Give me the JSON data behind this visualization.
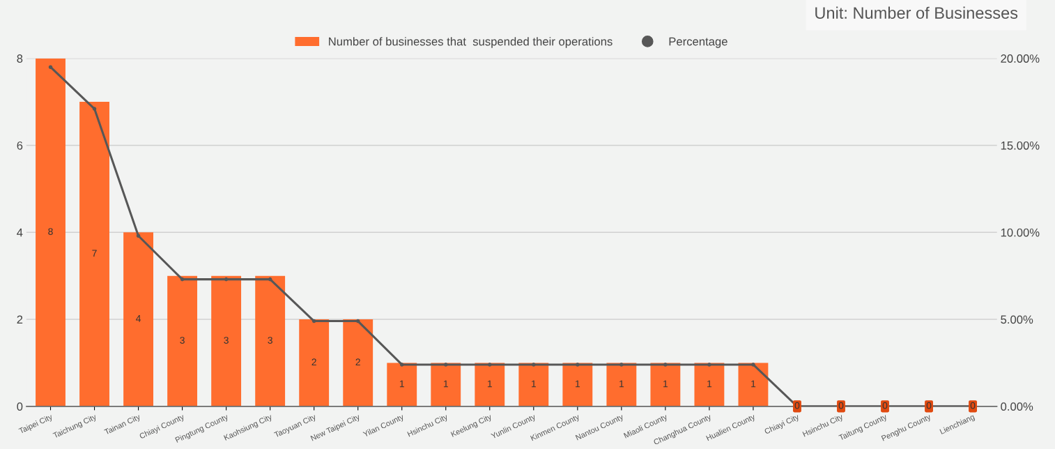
{
  "chart_data": {
    "type": "bar",
    "annotations": [
      "Unit: Number of Businesses"
    ],
    "categories": [
      "Taipei City",
      "Taichung City",
      "Tainan City",
      "Chiayi County",
      "Pingtung County",
      "Kaohsiung City",
      "Taoyuan City",
      "New Taipei City",
      "Yilan County",
      "Hsinchu City",
      "Keelung City",
      "Yunlin County",
      "Kinmen County",
      "Nantou County",
      "Miaoli County",
      "Changhua County",
      "Hualien County",
      "Chiayi City",
      "Hsinchu City",
      "Taitung County",
      "Penghu County",
      "Lienchiang"
    ],
    "series": [
      {
        "name": "Number of businesses that  suspended their operations",
        "color": "#ff6d2e",
        "values": [
          8,
          7,
          4,
          3,
          3,
          3,
          2,
          2,
          1,
          1,
          1,
          1,
          1,
          1,
          1,
          1,
          1,
          0,
          0,
          0,
          0,
          0
        ],
        "value_labels": [
          "8",
          "7",
          "4",
          "3",
          "3",
          "3",
          "2",
          "2",
          "1",
          "1",
          "1",
          "1",
          "1",
          "1",
          "1",
          "1",
          "1",
          "0",
          "0",
          "0",
          "0",
          "0"
        ]
      },
      {
        "name": "Percentage",
        "type": "line",
        "axis": "y2",
        "color": "#575757",
        "values": [
          19.5,
          17.1,
          9.8,
          7.3,
          7.3,
          7.3,
          4.9,
          4.9,
          2.4,
          2.4,
          2.4,
          2.4,
          2.4,
          2.4,
          2.4,
          2.4,
          2.4,
          0,
          0,
          0,
          0,
          0
        ]
      }
    ],
    "ylim": [
      0,
      8
    ],
    "yticks": [
      0,
      2,
      4,
      6,
      8
    ],
    "y2lim": [
      0,
      20
    ],
    "y2ticks": [
      {
        "value": 0,
        "label": "0.00%"
      },
      {
        "value": 5,
        "label": "5.00%"
      },
      {
        "value": 10,
        "label": "10.00%"
      },
      {
        "value": 15,
        "label": "15.00%"
      },
      {
        "value": 20,
        "label": "20.00%"
      }
    ],
    "grid": "y",
    "legend": "top",
    "marker": "circle",
    "line_style": "solid"
  }
}
